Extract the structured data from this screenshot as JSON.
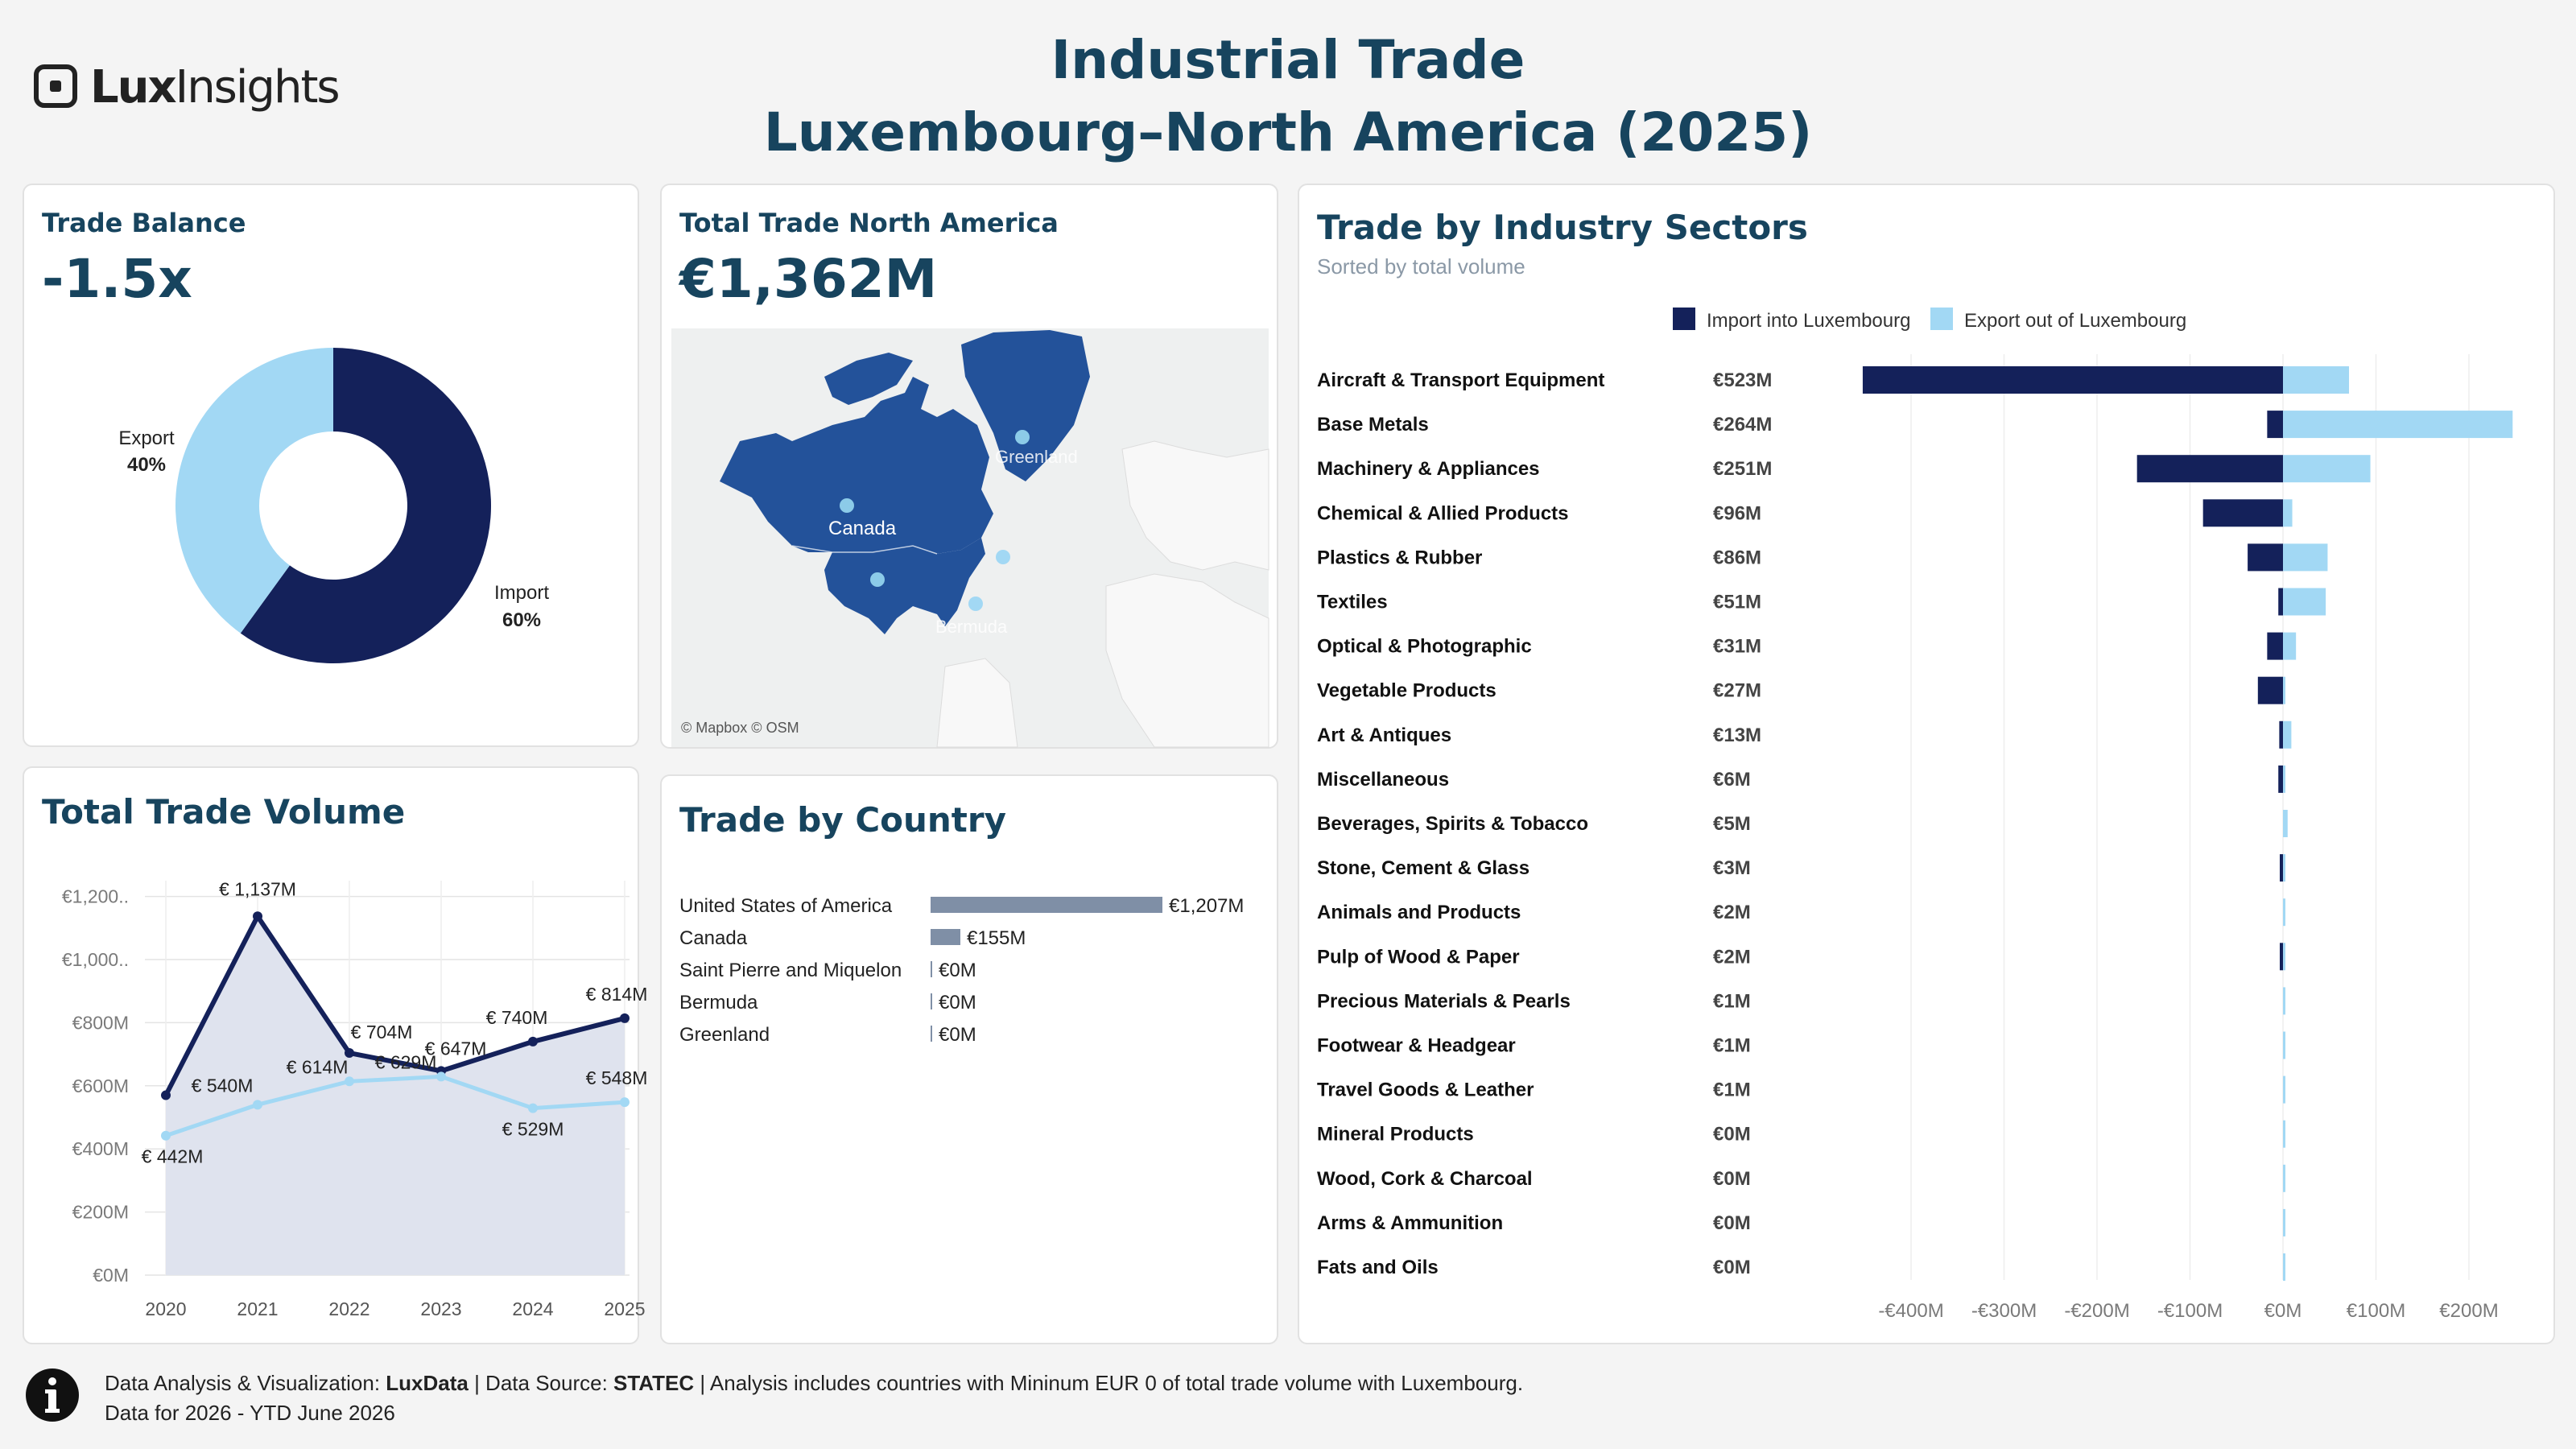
{
  "header": {
    "title_line1": "Industrial Trade",
    "title_line2": "Luxembourg–North America  (2025)",
    "logo_bold": "Lux",
    "logo_light": "Insights"
  },
  "trade_balance": {
    "title": "Trade Balance",
    "kpi": "-1.5x",
    "export_label": "Export",
    "export_pct": "40%",
    "import_label": "Import",
    "import_pct": "60%"
  },
  "total_trade_na": {
    "title": "Total Trade North America",
    "kpi": "€1,362M",
    "map_labels": [
      "Canada",
      "Greenland",
      "Bermuda"
    ],
    "attribution": "© Mapbox © OSM"
  },
  "total_trade_volume": {
    "title": "Total Trade Volume"
  },
  "trade_by_country": {
    "title": "Trade by Country"
  },
  "trade_by_sector": {
    "title": "Trade by Industry Sectors",
    "subtitle": "Sorted by total volume",
    "legend_import": "Import into Luxembourg",
    "legend_export": "Export out of Luxembourg"
  },
  "footer": {
    "line1_a": "Data Analysis & Visualization: ",
    "line1_b": "LuxData",
    "line1_c": " | Data Source: ",
    "line1_d": "STATEC",
    "line1_e": " | Analysis includes countries with Mininum EUR 0 of total trade volume with Luxembourg.",
    "line2": "Data for 2026 - YTD June 2026"
  },
  "colors": {
    "import": "#14215a",
    "export": "#a2d8f4",
    "title": "#17445e",
    "country_bar": "#7f8fa6"
  },
  "chart_data": [
    {
      "type": "pie",
      "labels": [
        "Import",
        "Export"
      ],
      "values": [
        60,
        40
      ]
    },
    {
      "type": "line",
      "x": [
        "2020",
        "2021",
        "2022",
        "2023",
        "2024",
        "2025"
      ],
      "y_tick_labels": [
        "€0M",
        "€200M",
        "€400M",
        "€600M",
        "€800M",
        "€1,000..",
        "€1,200.."
      ],
      "ylim": [
        0,
        1250
      ],
      "series": [
        {
          "values": [
            570,
            1137,
            704,
            647,
            740,
            814
          ],
          "labels": [
            "",
            "€ 1,137M",
            "€ 704M",
            "€ 647M",
            "€ 740M",
            "€ 814M"
          ]
        },
        {
          "values": [
            442,
            540,
            614,
            629,
            529,
            548
          ],
          "labels": [
            "€ 442M",
            "€ 540M",
            "€ 614M",
            "€ 629M",
            "€ 529M",
            "€ 548M"
          ]
        }
      ]
    },
    {
      "type": "bar",
      "categories": [
        "United States of America",
        "Canada",
        "Saint Pierre and Miquelon",
        "Bermuda",
        "Greenland"
      ],
      "values": [
        1207,
        155,
        0,
        0,
        0
      ],
      "labels": [
        "€1,207M",
        "€155M",
        "€0M",
        "€0M",
        "€0M"
      ]
    },
    {
      "type": "bar",
      "categories": [
        "Aircraft & Transport Equipment",
        "Base Metals",
        "Machinery & Appliances",
        "Chemical & Allied Products",
        "Plastics & Rubber",
        "Textiles",
        "Optical & Photographic",
        "Vegetable Products",
        "Art & Antiques",
        "Miscellaneous",
        "Beverages, Spirits & Tobacco",
        "Stone, Cement & Glass",
        "Animals and Products",
        "Pulp of Wood & Paper",
        "Precious Materials & Pearls",
        "Footwear & Headgear",
        "Travel Goods & Leather",
        "Mineral Products",
        "Wood, Cork & Charcoal",
        "Arms & Ammunition",
        "Fats and Oils"
      ],
      "totals": [
        "€523M",
        "€264M",
        "€251M",
        "€96M",
        "€86M",
        "€51M",
        "€31M",
        "€27M",
        "€13M",
        "€6M",
        "€5M",
        "€3M",
        "€2M",
        "€2M",
        "€1M",
        "€1M",
        "€1M",
        "€0M",
        "€0M",
        "€0M",
        "€0M"
      ],
      "series": [
        {
          "name": "Import into Luxembourg",
          "values": [
            -452,
            -17,
            -157,
            -86,
            -38,
            -5,
            -17,
            -27,
            -4,
            -5,
            0,
            -2,
            0,
            -2,
            0,
            0,
            0,
            0,
            0,
            0,
            0
          ]
        },
        {
          "name": "Export out of Luxembourg",
          "values": [
            71,
            247,
            94,
            10,
            48,
            46,
            14,
            0,
            9,
            1,
            5,
            1,
            2,
            0,
            1,
            1,
            1,
            0,
            0,
            0,
            0
          ]
        }
      ],
      "x_tick_labels": [
        "-€400M",
        "-€300M",
        "-€200M",
        "-€100M",
        "€0M",
        "€100M",
        "€200M"
      ],
      "xlim": [
        -480,
        260
      ]
    }
  ]
}
